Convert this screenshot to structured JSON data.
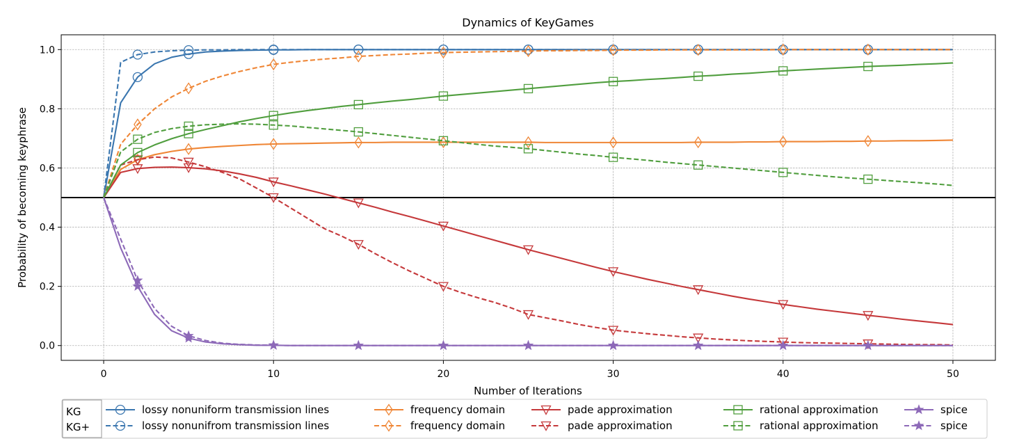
{
  "chart_data": {
    "type": "line",
    "title": "Dynamics of KeyGames",
    "xlabel": "Number of Iterations",
    "ylabel": "Probability of becoming keyphrase",
    "xlim": [
      -2.5,
      52.5
    ],
    "ylim": [
      -0.05,
      1.05
    ],
    "xticks": [
      0,
      10,
      20,
      30,
      40,
      50
    ],
    "xtick_labels": [
      "0",
      "10",
      "20",
      "30",
      "40",
      "50"
    ],
    "yticks": [
      0.0,
      0.2,
      0.4,
      0.6,
      0.8,
      1.0
    ],
    "ytick_labels": [
      "0.0",
      "0.2",
      "0.4",
      "0.6",
      "0.8",
      "1.0"
    ],
    "grid": true,
    "reference_line": {
      "y": 0.5,
      "color": "#000000"
    },
    "legend": {
      "placement": "bottom",
      "style_labels": [
        "KG",
        "KG+"
      ]
    },
    "x": [
      0,
      1,
      2,
      3,
      4,
      5,
      6,
      7,
      8,
      9,
      10,
      11,
      12,
      13,
      14,
      15,
      16,
      17,
      18,
      19,
      20,
      21,
      22,
      23,
      24,
      25,
      26,
      27,
      28,
      29,
      30,
      31,
      32,
      33,
      34,
      35,
      36,
      37,
      38,
      39,
      40,
      41,
      42,
      43,
      44,
      45,
      46,
      47,
      48,
      49,
      50
    ],
    "marker_x": {
      "kg": [
        2,
        5,
        10,
        15,
        20,
        25,
        30,
        35,
        40,
        45
      ],
      "kgplus": [
        2,
        5,
        10,
        15,
        20,
        25,
        30,
        35,
        40,
        45
      ]
    },
    "series": [
      {
        "name": "lossy nonuniform transmission lines",
        "group": "KG",
        "color": "#3a76af",
        "dash": "solid",
        "marker": "circle",
        "values": [
          0.5,
          0.82,
          0.907,
          0.952,
          0.974,
          0.985,
          0.992,
          0.995,
          0.997,
          0.998,
          0.999,
          0.999,
          1.0,
          1.0,
          1.0,
          1.0,
          1.0,
          1.0,
          1.0,
          1.0,
          1.0,
          1.0,
          1.0,
          1.0,
          1.0,
          1.0,
          1.0,
          1.0,
          1.0,
          1.0,
          1.0,
          1.0,
          1.0,
          1.0,
          1.0,
          1.0,
          1.0,
          1.0,
          1.0,
          1.0,
          1.0,
          1.0,
          1.0,
          1.0,
          1.0,
          1.0,
          1.0,
          1.0,
          1.0,
          1.0,
          1.0
        ]
      },
      {
        "name": "lossy nonunifrom transmission lines",
        "group": "KG+",
        "color": "#3a76af",
        "dash": "dashed",
        "marker": "circle",
        "values": [
          0.5,
          0.957,
          0.983,
          0.992,
          0.996,
          0.998,
          0.999,
          0.999,
          1.0,
          1.0,
          1.0,
          1.0,
          1.0,
          1.0,
          1.0,
          1.0,
          1.0,
          1.0,
          1.0,
          1.0,
          1.0,
          1.0,
          1.0,
          1.0,
          1.0,
          1.0,
          1.0,
          1.0,
          1.0,
          1.0,
          1.0,
          1.0,
          1.0,
          1.0,
          1.0,
          1.0,
          1.0,
          1.0,
          1.0,
          1.0,
          1.0,
          1.0,
          1.0,
          1.0,
          1.0,
          1.0,
          1.0,
          1.0,
          1.0,
          1.0,
          1.0
        ]
      },
      {
        "name": "frequency domain",
        "group": "KG",
        "color": "#ef8636",
        "dash": "solid",
        "marker": "diamond",
        "values": [
          0.5,
          0.595,
          0.628,
          0.645,
          0.656,
          0.664,
          0.669,
          0.673,
          0.676,
          0.679,
          0.681,
          0.682,
          0.683,
          0.684,
          0.685,
          0.686,
          0.686,
          0.687,
          0.687,
          0.687,
          0.687,
          0.687,
          0.687,
          0.687,
          0.687,
          0.687,
          0.686,
          0.686,
          0.686,
          0.686,
          0.686,
          0.686,
          0.686,
          0.686,
          0.686,
          0.687,
          0.687,
          0.687,
          0.688,
          0.688,
          0.689,
          0.689,
          0.689,
          0.69,
          0.69,
          0.691,
          0.691,
          0.692,
          0.692,
          0.693,
          0.694
        ]
      },
      {
        "name": "frequency domain",
        "group": "KG+",
        "color": "#ef8636",
        "dash": "dashed",
        "marker": "diamond",
        "values": [
          0.5,
          0.68,
          0.747,
          0.8,
          0.84,
          0.869,
          0.893,
          0.911,
          0.926,
          0.939,
          0.95,
          0.957,
          0.963,
          0.968,
          0.972,
          0.977,
          0.98,
          0.983,
          0.985,
          0.988,
          0.99,
          0.991,
          0.992,
          0.993,
          0.994,
          0.995,
          0.996,
          0.996,
          0.997,
          0.997,
          0.998,
          0.998,
          0.998,
          0.999,
          0.999,
          0.999,
          0.999,
          0.999,
          0.999,
          0.999,
          1.0,
          1.0,
          1.0,
          1.0,
          1.0,
          1.0,
          1.0,
          1.0,
          1.0,
          1.0,
          1.0
        ]
      },
      {
        "name": "pade approximation",
        "group": "KG",
        "color": "#c5383a",
        "dash": "solid",
        "marker": "triangle-down",
        "values": [
          0.5,
          0.585,
          0.598,
          0.602,
          0.603,
          0.601,
          0.597,
          0.59,
          0.58,
          0.568,
          0.553,
          0.54,
          0.526,
          0.512,
          0.497,
          0.482,
          0.467,
          0.451,
          0.436,
          0.42,
          0.404,
          0.388,
          0.372,
          0.356,
          0.34,
          0.324,
          0.309,
          0.294,
          0.279,
          0.264,
          0.25,
          0.237,
          0.224,
          0.212,
          0.2,
          0.189,
          0.178,
          0.167,
          0.157,
          0.148,
          0.139,
          0.131,
          0.123,
          0.116,
          0.109,
          0.102,
          0.096,
          0.089,
          0.083,
          0.077,
          0.071
        ]
      },
      {
        "name": "pade approximation",
        "group": "KG+",
        "color": "#c5383a",
        "dash": "dashed",
        "marker": "triangle-down",
        "values": [
          0.5,
          0.61,
          0.628,
          0.637,
          0.634,
          0.62,
          0.604,
          0.585,
          0.563,
          0.532,
          0.5,
          0.465,
          0.43,
          0.395,
          0.37,
          0.342,
          0.31,
          0.28,
          0.252,
          0.226,
          0.2,
          0.18,
          0.162,
          0.146,
          0.127,
          0.105,
          0.094,
          0.083,
          0.071,
          0.061,
          0.052,
          0.046,
          0.04,
          0.035,
          0.03,
          0.026,
          0.022,
          0.019,
          0.016,
          0.014,
          0.012,
          0.01,
          0.009,
          0.008,
          0.007,
          0.006,
          0.005,
          0.004,
          0.003,
          0.003,
          0.002
        ]
      },
      {
        "name": "rational approximation",
        "group": "KG",
        "color": "#509e3e",
        "dash": "solid",
        "marker": "square",
        "values": [
          0.5,
          0.61,
          0.652,
          0.678,
          0.699,
          0.716,
          0.73,
          0.743,
          0.756,
          0.767,
          0.777,
          0.786,
          0.794,
          0.801,
          0.808,
          0.814,
          0.82,
          0.826,
          0.831,
          0.837,
          0.843,
          0.848,
          0.853,
          0.858,
          0.863,
          0.868,
          0.873,
          0.878,
          0.883,
          0.888,
          0.892,
          0.895,
          0.899,
          0.902,
          0.906,
          0.91,
          0.913,
          0.917,
          0.92,
          0.924,
          0.928,
          0.931,
          0.934,
          0.937,
          0.94,
          0.943,
          0.945,
          0.947,
          0.95,
          0.952,
          0.955
        ]
      },
      {
        "name": "rational approximation",
        "group": "KG+",
        "color": "#509e3e",
        "dash": "dashed",
        "marker": "square",
        "values": [
          0.5,
          0.654,
          0.697,
          0.72,
          0.733,
          0.741,
          0.746,
          0.748,
          0.749,
          0.748,
          0.745,
          0.742,
          0.737,
          0.732,
          0.727,
          0.722,
          0.716,
          0.71,
          0.704,
          0.698,
          0.692,
          0.686,
          0.68,
          0.674,
          0.67,
          0.665,
          0.659,
          0.653,
          0.647,
          0.642,
          0.636,
          0.631,
          0.626,
          0.62,
          0.615,
          0.61,
          0.605,
          0.6,
          0.595,
          0.59,
          0.585,
          0.58,
          0.575,
          0.57,
          0.566,
          0.562,
          0.558,
          0.554,
          0.55,
          0.546,
          0.541
        ]
      },
      {
        "name": "spice",
        "group": "KG",
        "color": "#8d69b8",
        "dash": "solid",
        "marker": "star",
        "values": [
          0.5,
          0.33,
          0.2,
          0.105,
          0.05,
          0.025,
          0.012,
          0.006,
          0.003,
          0.001,
          0.001,
          0.0,
          0.0,
          0.0,
          0.0,
          0.0,
          0.0,
          0.0,
          0.0,
          0.0,
          0.0,
          0.0,
          0.0,
          0.0,
          0.0,
          0.0,
          0.0,
          0.0,
          0.0,
          0.0,
          0.0,
          0.0,
          0.0,
          0.0,
          0.0,
          0.0,
          0.0,
          0.0,
          0.0,
          0.0,
          0.0,
          0.0,
          0.0,
          0.0,
          0.0,
          0.0,
          0.0,
          0.0,
          0.0,
          0.0,
          0.0
        ]
      },
      {
        "name": "spice",
        "group": "KG+",
        "color": "#8d69b8",
        "dash": "dashed",
        "marker": "star",
        "values": [
          0.5,
          0.36,
          0.22,
          0.125,
          0.065,
          0.033,
          0.017,
          0.008,
          0.004,
          0.002,
          0.001,
          0.0,
          0.0,
          0.0,
          0.0,
          0.0,
          0.0,
          0.0,
          0.0,
          0.0,
          0.0,
          0.0,
          0.0,
          0.0,
          0.0,
          0.0,
          0.0,
          0.0,
          0.0,
          0.0,
          0.0,
          0.0,
          0.0,
          0.0,
          0.0,
          0.0,
          0.0,
          0.0,
          0.0,
          0.0,
          0.0,
          0.0,
          0.0,
          0.0,
          0.0,
          0.0,
          0.0,
          0.0,
          0.0,
          0.0,
          0.0
        ]
      }
    ]
  }
}
